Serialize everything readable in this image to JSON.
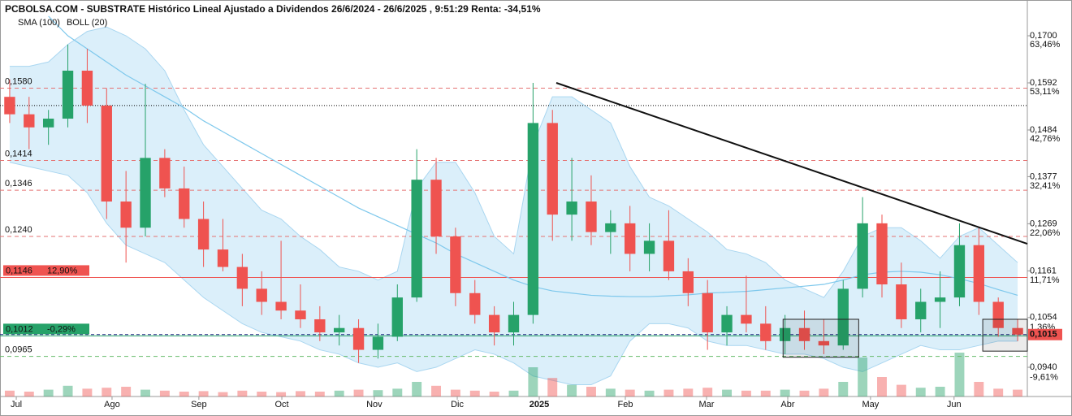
{
  "chart_data": {
    "type": "candlestick",
    "title": "PCBOLSA.COM - SUBSTRATE Histórico Lineal Ajustado a Dividendos 26/6/2024 - 26/6/2025 , 9:51:29 Renta: -34,51%",
    "legend": [
      {
        "name": "SMA (100)",
        "color": "#7ec8ec"
      },
      {
        "name": "BOLL (20)",
        "color": "#bbbbbb"
      }
    ],
    "candles": {
      "open": [
        0.156,
        0.152,
        0.149,
        0.151,
        0.162,
        0.154,
        0.132,
        0.126,
        0.142,
        0.135,
        0.128,
        0.121,
        0.117,
        0.112,
        0.109,
        0.107,
        0.105,
        0.102,
        0.103,
        0.098,
        0.101,
        0.11,
        0.137,
        0.124,
        0.111,
        0.106,
        0.102,
        0.106,
        0.15,
        0.129,
        0.132,
        0.125,
        0.127,
        0.12,
        0.123,
        0.116,
        0.111,
        0.102,
        0.106,
        0.104,
        0.1,
        0.103,
        0.1,
        0.099,
        0.112,
        0.127,
        0.113,
        0.105,
        0.109,
        0.11,
        0.122,
        0.109,
        0.103
      ],
      "high": [
        0.16,
        0.156,
        0.153,
        0.168,
        0.167,
        0.158,
        0.139,
        0.159,
        0.144,
        0.14,
        0.132,
        0.128,
        0.12,
        0.116,
        0.123,
        0.113,
        0.108,
        0.106,
        0.105,
        0.104,
        0.113,
        0.144,
        0.142,
        0.126,
        0.114,
        0.108,
        0.109,
        0.1592,
        0.153,
        0.142,
        0.138,
        0.13,
        0.131,
        0.127,
        0.13,
        0.119,
        0.114,
        0.108,
        0.115,
        0.108,
        0.106,
        0.107,
        0.105,
        0.114,
        0.133,
        0.129,
        0.118,
        0.112,
        0.116,
        0.127,
        0.126,
        0.11,
        0.105
      ],
      "low": [
        0.15,
        0.144,
        0.145,
        0.149,
        0.15,
        0.128,
        0.118,
        0.124,
        0.133,
        0.126,
        0.117,
        0.116,
        0.108,
        0.106,
        0.105,
        0.103,
        0.1,
        0.099,
        0.095,
        0.096,
        0.1,
        0.109,
        0.12,
        0.108,
        0.104,
        0.099,
        0.099,
        0.104,
        0.123,
        0.123,
        0.122,
        0.12,
        0.116,
        0.116,
        0.114,
        0.108,
        0.098,
        0.099,
        0.102,
        0.098,
        0.097,
        0.098,
        0.097,
        0.098,
        0.11,
        0.11,
        0.103,
        0.102,
        0.103,
        0.108,
        0.106,
        0.101,
        0.1
      ],
      "close": [
        0.152,
        0.149,
        0.151,
        0.162,
        0.154,
        0.132,
        0.126,
        0.142,
        0.135,
        0.128,
        0.121,
        0.117,
        0.112,
        0.109,
        0.107,
        0.105,
        0.102,
        0.103,
        0.098,
        0.101,
        0.11,
        0.137,
        0.124,
        0.111,
        0.106,
        0.102,
        0.106,
        0.15,
        0.129,
        0.132,
        0.125,
        0.127,
        0.12,
        0.123,
        0.116,
        0.111,
        0.102,
        0.106,
        0.104,
        0.1,
        0.103,
        0.1,
        0.099,
        0.112,
        0.127,
        0.113,
        0.105,
        0.109,
        0.11,
        0.122,
        0.109,
        0.103,
        0.1015
      ]
    },
    "volume": [
      12,
      10,
      14,
      22,
      16,
      18,
      20,
      14,
      12,
      10,
      11,
      9,
      12,
      10,
      9,
      11,
      10,
      12,
      14,
      13,
      16,
      30,
      22,
      14,
      12,
      10,
      12,
      60,
      38,
      24,
      20,
      16,
      14,
      12,
      14,
      16,
      18,
      14,
      12,
      12,
      14,
      12,
      16,
      30,
      80,
      40,
      24,
      18,
      20,
      90,
      30,
      16,
      14
    ],
    "volume_lim": [
      0,
      100
    ],
    "sma": [
      null,
      null,
      0.1745,
      0.17,
      0.167,
      0.164,
      0.161,
      0.1585,
      0.156,
      0.1535,
      0.1505,
      0.148,
      0.1455,
      0.143,
      0.1405,
      0.138,
      0.1355,
      0.133,
      0.1305,
      0.1285,
      0.1265,
      0.1245,
      0.1225,
      0.12,
      0.118,
      0.116,
      0.114,
      0.1125,
      0.1115,
      0.111,
      0.1105,
      0.1103,
      0.1102,
      0.1102,
      0.1104,
      0.1106,
      0.111,
      0.1112,
      0.1114,
      0.1118,
      0.1122,
      0.1126,
      0.113,
      0.114,
      0.1152,
      0.1158,
      0.116,
      0.1158,
      0.1152,
      0.1143,
      0.1132,
      0.1118,
      0.1105
    ],
    "boll_upper": [
      0.163,
      0.163,
      0.164,
      0.168,
      0.171,
      0.172,
      0.17,
      0.167,
      0.162,
      0.153,
      0.145,
      0.14,
      0.135,
      0.13,
      0.128,
      0.124,
      0.121,
      0.117,
      0.116,
      0.114,
      0.116,
      0.135,
      0.141,
      0.141,
      0.134,
      0.124,
      0.12,
      0.145,
      0.156,
      0.156,
      0.153,
      0.15,
      0.14,
      0.133,
      0.131,
      0.128,
      0.125,
      0.121,
      0.12,
      0.118,
      0.114,
      0.112,
      0.11,
      0.116,
      0.124,
      0.126,
      0.126,
      0.123,
      0.119,
      0.124,
      0.126,
      0.122,
      0.118
    ],
    "boll_lower": [
      0.141,
      0.14,
      0.139,
      0.138,
      0.134,
      0.127,
      0.122,
      0.12,
      0.118,
      0.114,
      0.11,
      0.107,
      0.104,
      0.102,
      0.101,
      0.1,
      0.098,
      0.097,
      0.095,
      0.094,
      0.095,
      0.093,
      0.094,
      0.096,
      0.098,
      0.097,
      0.095,
      0.092,
      0.091,
      0.09,
      0.09,
      0.092,
      0.1,
      0.104,
      0.104,
      0.103,
      0.1,
      0.099,
      0.099,
      0.098,
      0.097,
      0.097,
      0.096,
      0.094,
      0.093,
      0.095,
      0.097,
      0.099,
      0.098,
      0.098,
      0.099,
      0.1,
      0.1
    ],
    "up_color": "#26a269",
    "down_color": "#ef5350",
    "xlim": [
      -0.5,
      52.5
    ],
    "xticks": [
      {
        "value": 0.34,
        "label": "Jul"
      },
      {
        "value": 5.28,
        "label": "Ago"
      },
      {
        "value": 9.76,
        "label": "Sep"
      },
      {
        "value": 14.04,
        "label": "Oct"
      },
      {
        "value": 18.81,
        "label": "Nov"
      },
      {
        "value": 23.09,
        "label": "Dic"
      },
      {
        "value": 27.32,
        "label": "2025"
      },
      {
        "value": 31.76,
        "label": "Feb"
      },
      {
        "value": 35.95,
        "label": "Mar"
      },
      {
        "value": 40.14,
        "label": "Abr"
      },
      {
        "value": 44.41,
        "label": "May"
      },
      {
        "value": 48.72,
        "label": "Jun"
      }
    ],
    "ylim": [
      0.0873,
      0.1782
    ],
    "yticks": [
      {
        "value": 0.17,
        "label": "0,1700"
      },
      {
        "value": 0.1592,
        "label": "0,1592"
      },
      {
        "value": 0.1484,
        "label": "0,1484"
      },
      {
        "value": 0.1377,
        "label": "0,1377"
      },
      {
        "value": 0.1269,
        "label": "0,1269"
      },
      {
        "value": 0.1161,
        "label": "0,1161"
      },
      {
        "value": 0.1054,
        "label": "0,1054"
      },
      {
        "value": 0.094,
        "label": "0,0940"
      }
    ],
    "y2lim": [
      -15.77,
      71.31
    ],
    "y2ticks": [
      {
        "value": 63.46,
        "label": "63,46%"
      },
      {
        "value": 53.11,
        "label": "53,11%"
      },
      {
        "value": 42.76,
        "label": "42,76%"
      },
      {
        "value": 32.41,
        "label": "32,41%"
      },
      {
        "value": 22.06,
        "label": "22,06%"
      },
      {
        "value": 11.71,
        "label": "11,71%"
      },
      {
        "value": 1.36,
        "label": "1,36%"
      },
      {
        "value": -9.61,
        "label": "-9,61%"
      }
    ],
    "levels": [
      {
        "value": 0.158,
        "label": "0,1580",
        "color": "#e57373",
        "style": "dashed"
      },
      {
        "value": 0.154,
        "color": "#000000",
        "style": "dotted"
      },
      {
        "value": 0.1414,
        "label": "0,1414",
        "color": "#e57373",
        "style": "dashed"
      },
      {
        "value": 0.1346,
        "label": "0,1346",
        "color": "#e57373",
        "style": "dashed"
      },
      {
        "value": 0.124,
        "label": "0,1240",
        "color": "#e57373",
        "style": "dashed"
      },
      {
        "value": 0.0965,
        "label": "0,0965",
        "color": "#66bb6a",
        "style": "dashed"
      }
    ],
    "badges": [
      {
        "value": 0.1146,
        "label": "0,1146",
        "pct": "12,90%",
        "color": "#ef5350"
      },
      {
        "value": 0.1012,
        "label": "0,1012",
        "pct": "-0,29%",
        "color": "#26a269"
      }
    ],
    "last_price": {
      "value": 0.1015,
      "label": "0,1015",
      "color": "#ef5350"
    },
    "trendline": {
      "x": [
        28.2,
        52.5
      ],
      "values": [
        0.1592,
        0.1223
      ]
    },
    "boxes": [
      {
        "x": [
          39.9,
          43.8
        ],
        "values": [
          0.105,
          0.0963
        ]
      },
      {
        "x": [
          50.2,
          52.5
        ],
        "values": [
          0.105,
          0.0977
        ]
      }
    ]
  }
}
